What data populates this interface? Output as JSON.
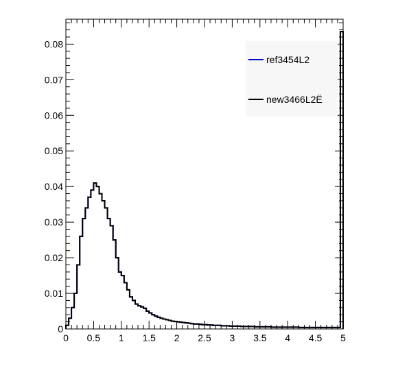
{
  "chart_data": {
    "type": "histogram",
    "title": "",
    "xlabel": "",
    "ylabel": "",
    "xlim": [
      0,
      5
    ],
    "ylim": [
      0,
      0.087
    ],
    "bin_width": 0.05,
    "grid": false,
    "legend_position": "top-right",
    "x_ticks": [
      "0",
      "0.5",
      "1",
      "1.5",
      "2",
      "2.5",
      "3",
      "3.5",
      "4",
      "4.5",
      "5"
    ],
    "y_ticks": [
      "0",
      "0.01",
      "0.02",
      "0.03",
      "0.04",
      "0.05",
      "0.06",
      "0.07",
      "0.08"
    ],
    "series": [
      {
        "name": "ref3454L2",
        "color": "#0000cc",
        "values": [
          0.001,
          0.003,
          0.006,
          0.01,
          0.018,
          0.026,
          0.031,
          0.034,
          0.037,
          0.039,
          0.041,
          0.04,
          0.038,
          0.036,
          0.034,
          0.031,
          0.029,
          0.025,
          0.02,
          0.016,
          0.015,
          0.013,
          0.011,
          0.009,
          0.008,
          0.007,
          0.0065,
          0.0062,
          0.0058,
          0.005,
          0.0045,
          0.004,
          0.0036,
          0.0033,
          0.003,
          0.0028,
          0.0026,
          0.0024,
          0.0022,
          0.0021,
          0.002,
          0.0019,
          0.0018,
          0.0017,
          0.0016,
          0.0015,
          0.0014,
          0.0014,
          0.0013,
          0.0012,
          0.0012,
          0.0011,
          0.0011,
          0.001,
          0.001,
          0.001,
          0.0009,
          0.0009,
          0.0009,
          0.0008,
          0.0008,
          0.0008,
          0.0008,
          0.0007,
          0.0007,
          0.0007,
          0.0007,
          0.0007,
          0.0006,
          0.0006,
          0.0006,
          0.0006,
          0.0006,
          0.0006,
          0.0005,
          0.0005,
          0.0005,
          0.0005,
          0.0005,
          0.0005,
          0.0005,
          0.0005,
          0.0005,
          0.0005,
          0.0004,
          0.0004,
          0.0004,
          0.0004,
          0.0004,
          0.0004,
          0.0004,
          0.0004,
          0.0004,
          0.0004,
          0.0004,
          0.0004,
          0.0004,
          0.0004,
          0.0004,
          0.0835
        ]
      },
      {
        "name": "new3466L2Ë",
        "color": "#000000",
        "values": [
          0.001,
          0.003,
          0.006,
          0.01,
          0.018,
          0.026,
          0.031,
          0.034,
          0.037,
          0.039,
          0.041,
          0.04,
          0.038,
          0.036,
          0.034,
          0.031,
          0.029,
          0.025,
          0.02,
          0.016,
          0.015,
          0.013,
          0.011,
          0.009,
          0.008,
          0.007,
          0.0065,
          0.0062,
          0.0058,
          0.005,
          0.0045,
          0.004,
          0.0036,
          0.0033,
          0.003,
          0.0028,
          0.0026,
          0.0024,
          0.0022,
          0.0021,
          0.002,
          0.0019,
          0.0018,
          0.0017,
          0.0016,
          0.0015,
          0.0014,
          0.0014,
          0.0013,
          0.0012,
          0.0012,
          0.0011,
          0.0011,
          0.001,
          0.001,
          0.001,
          0.0009,
          0.0009,
          0.0009,
          0.0008,
          0.0008,
          0.0008,
          0.0008,
          0.0007,
          0.0007,
          0.0007,
          0.0007,
          0.0007,
          0.0006,
          0.0006,
          0.0006,
          0.0006,
          0.0006,
          0.0006,
          0.0005,
          0.0005,
          0.0005,
          0.0005,
          0.0005,
          0.0005,
          0.0005,
          0.0005,
          0.0005,
          0.0005,
          0.0004,
          0.0004,
          0.0004,
          0.0004,
          0.0004,
          0.0004,
          0.0004,
          0.0004,
          0.0004,
          0.0004,
          0.0004,
          0.0004,
          0.0004,
          0.0004,
          0.0004,
          0.0835
        ]
      }
    ]
  }
}
